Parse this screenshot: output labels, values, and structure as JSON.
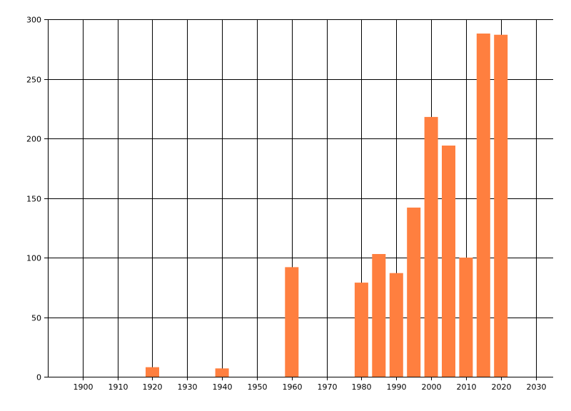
{
  "chart_data": {
    "type": "bar",
    "title": "",
    "xlabel": "",
    "ylabel": "",
    "x": [
      1920,
      1940,
      1960,
      1980,
      1985,
      1990,
      1995,
      2000,
      2005,
      2010,
      2015,
      2020
    ],
    "values": [
      8,
      7,
      92,
      79,
      103,
      87,
      142,
      218,
      194,
      100,
      288,
      287
    ],
    "xlim": [
      1890,
      2035
    ],
    "ylim": [
      0,
      300
    ],
    "xticks": [
      1900,
      1910,
      1920,
      1930,
      1940,
      1950,
      1960,
      1970,
      1980,
      1990,
      2000,
      2010,
      2020,
      2030
    ],
    "yticks": [
      0,
      50,
      100,
      150,
      200,
      250,
      300
    ],
    "grid": true,
    "bar_color": "#FF7F3F",
    "grid_color": "#000000"
  }
}
